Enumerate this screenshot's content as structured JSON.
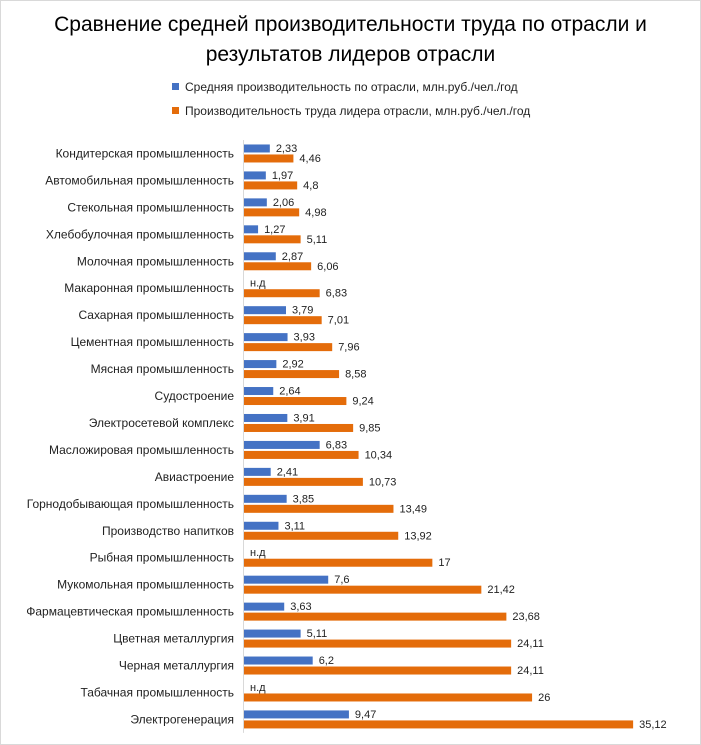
{
  "chart_data": {
    "type": "bar",
    "orientation": "horizontal",
    "title": "Сравнение средней производительности труда по отрасли и результатов лидеров отрасли",
    "title_lines": [
      "Сравнение средней производительности труда по отрасли и",
      "результатов лидеров отрасли"
    ],
    "categories": [
      "Кондитерская промышленность",
      "Автомобильная промышленность",
      "Стекольная промышленность",
      "Хлебобулочная промышленность",
      "Молочная промышленность",
      "Макаронная промышленность",
      "Сахарная промышленность",
      "Цементная промышленность",
      "Мясная промышленность",
      "Судостроение",
      "Электросетевой комплекс",
      "Масложировая промышленность",
      "Авиастроение",
      "Горнодобывающая промышленность",
      "Производство напитков",
      "Рыбная промышленность",
      "Мукомольная промышленность",
      "Фармацевтическая промышленность",
      "Цветная металлургия",
      "Черная металлургия",
      "Табачная промышленность",
      "Электрогенерация"
    ],
    "series": [
      {
        "name": "Средняя производительность по отрасли, млн.руб./чел./год",
        "color": "#4472c4",
        "values": [
          2.33,
          1.97,
          2.06,
          1.27,
          2.87,
          null,
          3.79,
          3.93,
          2.92,
          2.64,
          3.91,
          6.83,
          2.41,
          3.85,
          3.11,
          null,
          7.6,
          3.63,
          5.11,
          6.2,
          null,
          9.47
        ],
        "labels": [
          "2,33",
          "1,97",
          "2,06",
          "1,27",
          "2,87",
          "н.д",
          "3,79",
          "3,93",
          "2,92",
          "2,64",
          "3,91",
          "6,83",
          "2,41",
          "3,85",
          "3,11",
          "н.д",
          "7,6",
          "3,63",
          "5,11",
          "6,2",
          "н.д",
          "9,47"
        ]
      },
      {
        "name": "Производительность труда лидера отрасли, млн.руб./чел./год",
        "color": "#e46c0a",
        "values": [
          4.46,
          4.8,
          4.98,
          5.11,
          6.06,
          6.83,
          7.01,
          7.96,
          8.58,
          9.24,
          9.85,
          10.34,
          10.73,
          13.49,
          13.92,
          17,
          21.42,
          23.68,
          24.11,
          24.11,
          26,
          35.12
        ],
        "labels": [
          "4,46",
          "4,8",
          "4,98",
          "5,11",
          "6,06",
          "6,83",
          "7,01",
          "7,96",
          "8,58",
          "9,24",
          "9,85",
          "10,34",
          "10,73",
          "13,49",
          "13,92",
          "17",
          "21,42",
          "23,68",
          "24,11",
          "24,11",
          "26",
          "35,12"
        ]
      }
    ],
    "legend_position": "top",
    "grid": false,
    "xaxis_visible": false
  }
}
